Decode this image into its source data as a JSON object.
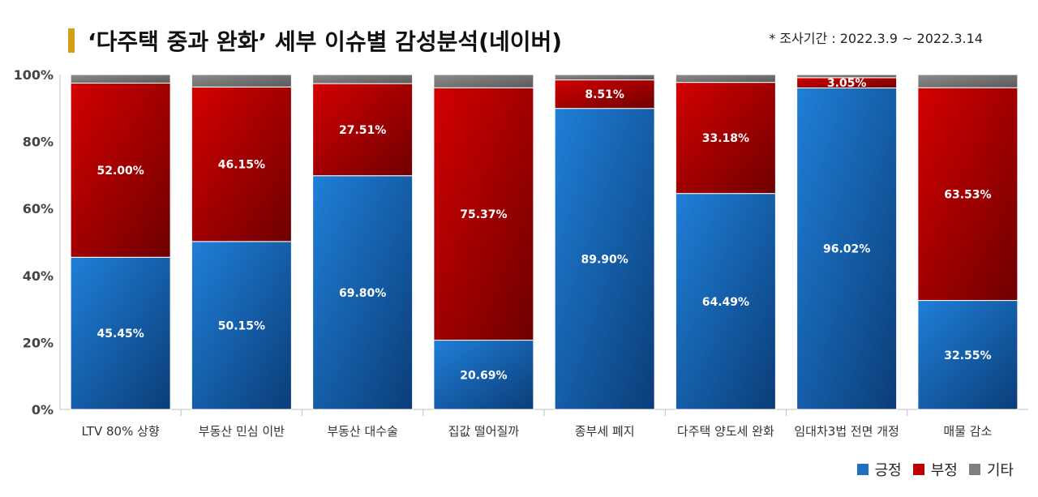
{
  "header": {
    "title": "‘다주택 중과 완화’ 세부 이슈별 감성분석(네이버)",
    "period": "* 조사기간 : 2022.3.9 ~ 2022.3.14"
  },
  "colors": {
    "positive": "#1f6fc0",
    "negative": "#c00000",
    "other": "#7f7f7f",
    "title_accent": "#d4a017"
  },
  "chart_data": {
    "type": "bar",
    "stacked": true,
    "title": "‘다주택 중과 완화’ 세부 이슈별 감성분석(네이버)",
    "categories": [
      "LTV 80% 상향",
      "부동산 민심 이반",
      "부동산 대수술",
      "집값 떨어질까",
      "종부세 폐지",
      "다주택 양도세 완화",
      "임대차3법 전면 개정",
      "매물 감소"
    ],
    "series": [
      {
        "name": "긍정",
        "values": [
          45.45,
          50.15,
          69.8,
          20.69,
          89.9,
          64.49,
          96.02,
          32.55
        ],
        "labels": [
          "45.45%",
          "50.15%",
          "69.80%",
          "20.69%",
          "89.90%",
          "64.49%",
          "96.02%",
          "32.55%"
        ]
      },
      {
        "name": "부정",
        "values": [
          52.0,
          46.15,
          27.51,
          75.37,
          8.51,
          33.18,
          3.05,
          63.53
        ],
        "labels": [
          "52.00%",
          "46.15%",
          "27.51%",
          "75.37%",
          "8.51%",
          "33.18%",
          "3.05%",
          "63.53%"
        ]
      },
      {
        "name": "기타",
        "values": [
          2.55,
          3.7,
          2.69,
          3.94,
          1.59,
          2.33,
          0.93,
          3.92
        ]
      }
    ],
    "yticks": [
      "0%",
      "20%",
      "40%",
      "60%",
      "80%",
      "100%"
    ],
    "ylim": [
      0,
      100
    ],
    "xlabel": "",
    "ylabel": "",
    "legend": "bottom-right",
    "grid": false
  }
}
